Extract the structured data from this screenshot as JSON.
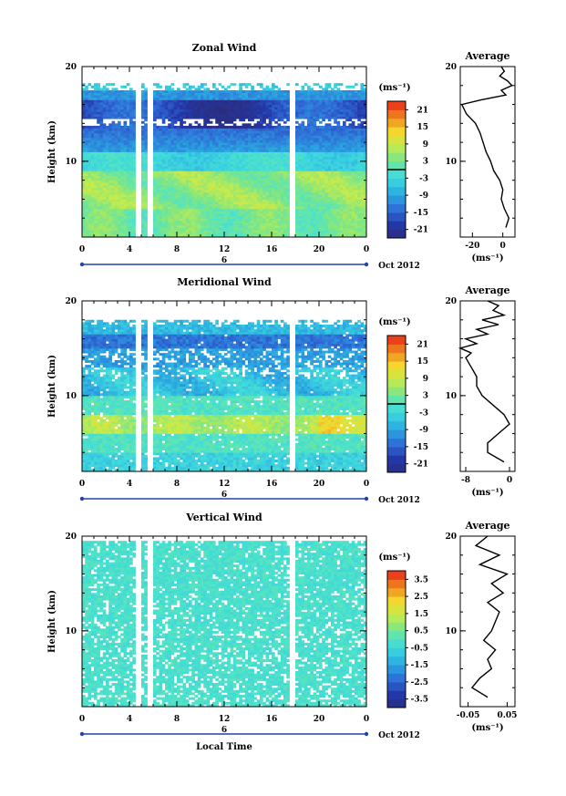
{
  "figure": {
    "xlabel": "Local Time",
    "date_label": "Oct 2012",
    "day_label": "6"
  },
  "chart_data": [
    {
      "type": "heatmap",
      "title": "Zonal Wind",
      "ylabel": "Height (km)",
      "xlabel": "Local Time",
      "x_ticks": [
        "0",
        "4",
        "8",
        "12",
        "16",
        "20",
        "0"
      ],
      "y_ticks": [
        "20",
        "10"
      ],
      "xlim": [
        0,
        24
      ],
      "ylim": [
        2,
        20
      ],
      "colorbar": {
        "unit": "(ms⁻¹)",
        "ticks": [
          "21",
          "15",
          "9",
          "3",
          "-3",
          "-9",
          "-15",
          "-21"
        ],
        "range": [
          -24,
          24
        ]
      },
      "profile": {
        "title": "Average",
        "x_ticks": [
          "-20",
          "0"
        ],
        "xlabel": "(ms⁻¹)",
        "xlim": [
          -28,
          8
        ],
        "heights": [
          3,
          4,
          5,
          6,
          7,
          8,
          9,
          10,
          11,
          12,
          13,
          14,
          15,
          16,
          16.5,
          17,
          17.5,
          18,
          18.5,
          19,
          19.5,
          20
        ],
        "values": [
          2,
          4,
          1,
          -1,
          0,
          -2,
          -6,
          -8,
          -11,
          -13,
          -15,
          -18,
          -24,
          -27,
          -14,
          2,
          -1,
          6,
          3,
          -2,
          1,
          -1
        ]
      }
    },
    {
      "type": "heatmap",
      "title": "Meridional Wind",
      "ylabel": "Height (km)",
      "xlabel": "Local Time",
      "x_ticks": [
        "0",
        "4",
        "8",
        "12",
        "16",
        "20",
        "0"
      ],
      "y_ticks": [
        "20",
        "10"
      ],
      "xlim": [
        0,
        24
      ],
      "ylim": [
        2,
        20
      ],
      "colorbar": {
        "unit": "(ms⁻¹)",
        "ticks": [
          "21",
          "15",
          "9",
          "3",
          "-3",
          "-9",
          "-15",
          "-21"
        ],
        "range": [
          -24,
          24
        ]
      },
      "profile": {
        "title": "Average",
        "x_ticks": [
          "-8",
          "0"
        ],
        "xlabel": "(ms⁻¹)",
        "xlim": [
          -9,
          1
        ],
        "heights": [
          3,
          4,
          5,
          6,
          7,
          8,
          9,
          10,
          11,
          12,
          13,
          14,
          14.5,
          15,
          15.5,
          16,
          16.5,
          17,
          17.5,
          18,
          18.5,
          19,
          19.5,
          20
        ],
        "values": [
          -1,
          -4,
          -4,
          -2,
          0,
          -1,
          -3,
          -5,
          -6,
          -6,
          -7,
          -8,
          -7,
          -9,
          -6,
          -8,
          -4,
          -6,
          -2,
          -5,
          -1,
          -3,
          -2,
          -4
        ]
      }
    },
    {
      "type": "heatmap",
      "title": "Vertical Wind",
      "ylabel": "Height (km)",
      "xlabel": "Local Time",
      "x_ticks": [
        "0",
        "4",
        "8",
        "12",
        "16",
        "20",
        "0"
      ],
      "y_ticks": [
        "20",
        "10"
      ],
      "xlim": [
        0,
        24
      ],
      "ylim": [
        2,
        20
      ],
      "colorbar": {
        "unit": "(ms⁻¹)",
        "ticks": [
          "3.5",
          "2.5",
          "1.5",
          "0.5",
          "-0.5",
          "-1.5",
          "-2.5",
          "-3.5"
        ],
        "range": [
          -4,
          4
        ]
      },
      "profile": {
        "title": "Average",
        "x_ticks": [
          "-0.05",
          "0.05"
        ],
        "xlabel": "(ms⁻¹)",
        "xlim": [
          -0.07,
          0.07
        ],
        "heights": [
          3,
          4,
          5,
          6,
          7,
          8,
          9,
          10,
          11,
          12,
          13,
          14,
          15,
          16,
          17,
          18,
          19,
          20
        ],
        "values": [
          0.0,
          -0.04,
          -0.02,
          0.01,
          0.0,
          0.02,
          -0.01,
          0.01,
          0.02,
          0.03,
          0.0,
          0.04,
          0.01,
          0.05,
          -0.02,
          0.03,
          -0.03,
          0.0
        ]
      }
    }
  ]
}
